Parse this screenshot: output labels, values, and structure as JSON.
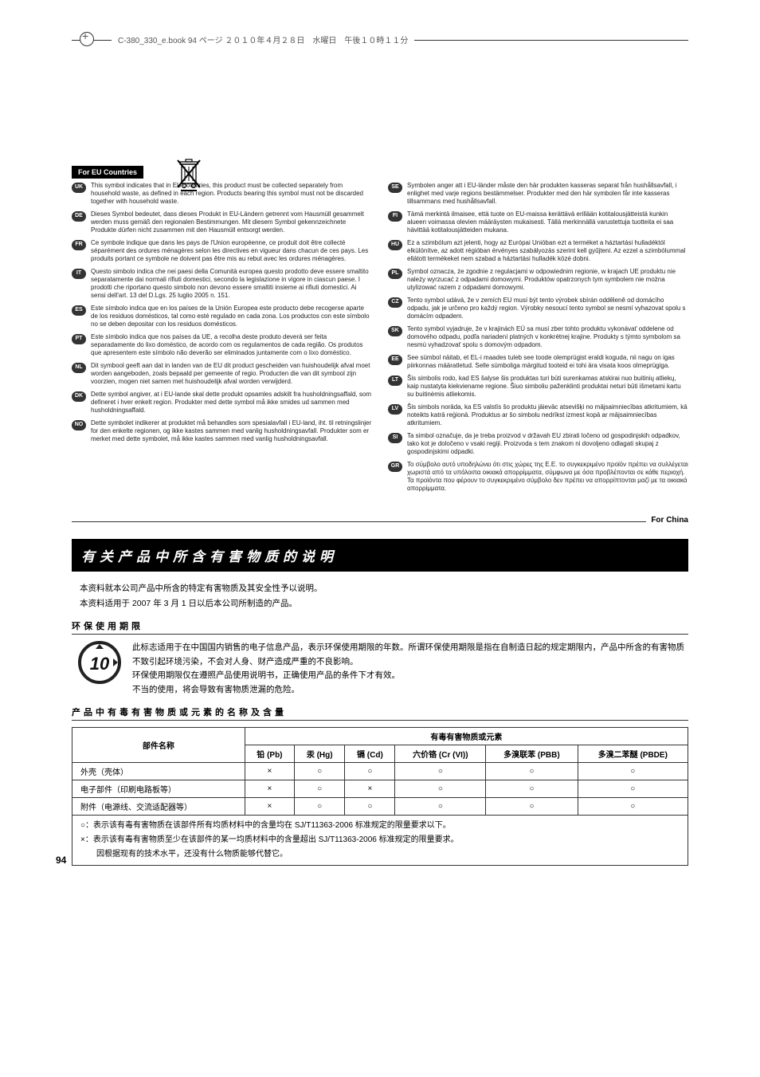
{
  "header": "C-380_330_e.book  94 ページ  ２０１０年４月２８日　水曜日　午後１０時１１分",
  "eu_title": "For EU Countries",
  "china_label": "For China",
  "left_langs": [
    {
      "code": "UK",
      "text": "This symbol indicates that in EU countries, this product must be collected separately from household waste, as defined in each region. Products bearing this symbol must not be discarded together with household waste."
    },
    {
      "code": "DE",
      "text": "Dieses Symbol bedeutet, dass dieses Produkt in EU-Ländern getrennt vom Hausmüll gesammelt werden muss gemäß den regionalen Bestimmungen. Mit diesem Symbol gekennzeichnete Produkte dürfen nicht zusammen mit den Hausmüll entsorgt werden."
    },
    {
      "code": "FR",
      "text": "Ce symbole indique que dans les pays de l'Union européenne, ce produit doit être collecté séparément des ordures ménagères selon les directives en vigueur dans chacun de ces pays. Les produits portant ce symbole ne doivent pas être mis au rebut avec les ordures ménagères."
    },
    {
      "code": "IT",
      "text": "Questo simbolo indica che nei paesi della Comunità europea questo prodotto deve essere smaltito separatamente dai normali rifiuti domestici, secondo la legislazione in vigore in ciascun paese. I prodotti che riportano questo simbolo non devono essere smaltiti insieme ai rifiuti domestici. Ai sensi dell'art. 13 del D.Lgs. 25 luglio 2005 n. 151."
    },
    {
      "code": "ES",
      "text": "Este símbolo indica que en los países de la Unión Europea este producto debe recogerse aparte de los residuos domésticos, tal como esté regulado en cada zona. Los productos con este símbolo no se deben depositar con los residuos domésticos."
    },
    {
      "code": "PT",
      "text": "Este símbolo indica que nos países da UE, a recolha deste produto deverá ser feita separadamente do lixo doméstico, de acordo com os regulamentos de cada região. Os produtos que apresentem este símbolo não deverão ser eliminados juntamente com o lixo doméstico."
    },
    {
      "code": "NL",
      "text": "Dit symbool geeft aan dat in landen van de EU dit product gescheiden van huishoudelijk afval moet worden aangeboden, zoals bepaald per gemeente of regio. Producten die van dit symbool zijn voorzien, mogen niet samen met huishoudelijk afval worden verwijderd."
    },
    {
      "code": "DK",
      "text": "Dette symbol angiver, at i EU-lande skal dette produkt opsamles adskilt fra husholdningsaffald, som defineret i hver enkelt region. Produkter med dette symbol må ikke smides ud sammen med husholdningsaffald."
    },
    {
      "code": "NO",
      "text": "Dette symbolet indikerer at produktet må behandles som spesialavfall i EU-land, iht. til retningslinjer for den enkelte regionen, og ikke kastes sammen med vanlig husholdningsavfall. Produkter som er merket med dette symbolet, må ikke kastes sammen med vanlig husholdningsavfall."
    }
  ],
  "right_langs": [
    {
      "code": "SE",
      "text": "Symbolen anger att i EU-länder måste den här produkten kasseras separat från hushållsavfall, i enlighet med varje regions bestämmelser. Produkter med den här symbolen får inte kasseras tillsammans med hushållsavfall."
    },
    {
      "code": "FI",
      "text": "Tämä merkintä ilmaisee, että tuote on EU-maissa kerättävä erillään kotitalousjätteistä kunkin alueen voimassa olevien määräysten mukaisesti. Tällä merkinnällä varustettuja tuotteita ei saa hävittää kotitalousjätteiden mukana."
    },
    {
      "code": "HU",
      "text": "Ez a szimbólum azt jelenti, hogy az Európai Unióban ezt a terméket a háztartási hulladéktól elkülönítve, az adott régióban érvényes szabályozás szerint kell gyűjteni. Az ezzel a szimbólummal ellátott termékeket nem szabad a háztartási hulladék közé dobni."
    },
    {
      "code": "PL",
      "text": "Symbol oznacza, że zgodnie z regulacjami w odpowiednim regionie, w krajach UE produktu nie należy wyrzucać z odpadami domowymi. Produktów opatrzonych tym symbolem nie można utylizować razem z odpadami domowymi."
    },
    {
      "code": "CZ",
      "text": "Tento symbol udává, že v zemích EU musí být tento výrobek sbírán odděleně od domácího odpadu, jak je určeno pro každý region. Výrobky nesoucí tento symbol se nesmí vyhazovat spolu s domácím odpadem."
    },
    {
      "code": "SK",
      "text": "Tento symbol vyjadruje, že v krajinách EÚ sa musí zber tohto produktu vykonávať oddelene od domového odpadu, podľa nariadení platných v konkrétnej krajine. Produkty s týmto symbolom sa nesmú vyhadzovať spolu s domovým odpadom."
    },
    {
      "code": "EE",
      "text": "See sümbol näitab, et EL-i maades tuleb see toode olemprügist eraldi koguda, nii nagu on igas piirkonnas määratletud. Selle sümboliga märgitud tooteid ei tohi ära visata koos olmeprügiga."
    },
    {
      "code": "LT",
      "text": "Šis simbolis rodo, kad ES šalyse šis produktas turi būti surenkamas atskirai nuo buitinių atliekų, kaip nustatyta kiekviename regione. Šiuo simboliu paženklinti produktai neturi būti išmetami kartu su buitinėmis atliekomis."
    },
    {
      "code": "LV",
      "text": "Šis simbols norāda, ka ES valstīs šo produktu jāievāc atsevišķi no mājsaimniecības atkritumiem, kā noteikts katrā reģionā. Produktus ar šo simbolu nedrīkst izmest kopā ar mājsaimniecības atkritumiem."
    },
    {
      "code": "SI",
      "text": "Ta simbol označuje, da je treba proizvod v državah EU zbirati ločeno od gospodinjskih odpadkov, tako kot je določeno v vsaki regiji. Proizvoda s tem znakom ni dovoljeno odlagati skupaj z gospodinjskimi odpadki."
    },
    {
      "code": "GR",
      "text": "Το σύμβολο αυτό υποδηλώνει ότι στις χώρες της Ε.Ε. το συγκεκριμένο προϊόν πρέπει να συλλέγεται χωριστά από τα υπόλοιπα οικιακά απορρίμματα, σύμφωνα με όσα προβλέπονται σε κάθε περιοχή. Τα προϊόντα που φέρουν το συγκεκριμένο σύμβολο δεν πρέπει να απορρίπτονται μαζί με τα οικιακά απορρίμματα."
    }
  ],
  "china": {
    "title": "有关产品中所含有害物质的说明",
    "intro1": "本资料就本公司产品中所含的特定有害物质及其安全性予以说明。",
    "intro2": "本资料适用于 2007 年 3 月 1 日以后本公司所制造的产品。",
    "sub1": "环保使用期限",
    "env1": "此标志适用于在中国国内销售的电子信息产品，表示环保使用期限的年数。所谓环保使用期限是指在自制造日起的规定期限内，产品中所含的有害物质不致引起环境污染，不会对人身、财产造成严重的不良影响。",
    "env2": "环保使用期限仅在遵照产品使用说明书，正确使用产品的条件下才有效。",
    "env3": "不当的使用，将会导致有害物质泄漏的危险。",
    "sub2": "产品中有毒有害物质或元素的名称及含量",
    "th_part": "部件名称",
    "th_group": "有毒有害物质或元素",
    "cols": [
      "铅 (Pb)",
      "汞 (Hg)",
      "镉 (Cd)",
      "六价铬 (Cr (VI))",
      "多溴联苯 (PBB)",
      "多溴二苯醚 (PBDE)"
    ],
    "rows": [
      {
        "name": "外壳（壳体）",
        "vals": [
          "×",
          "○",
          "○",
          "○",
          "○",
          "○"
        ]
      },
      {
        "name": "电子部件（印刷电路板等）",
        "vals": [
          "×",
          "○",
          "×",
          "○",
          "○",
          "○"
        ]
      },
      {
        "name": "附件（电源线、交流适配器等）",
        "vals": [
          "×",
          "○",
          "○",
          "○",
          "○",
          "○"
        ]
      }
    ],
    "note1": "○：表示该有毒有害物质在该部件所有均质材料中的含量均在 SJ/T11363-2006 标准规定的限量要求以下。",
    "note2": "×：表示该有毒有害物质至少在该部件的某一均质材料中的含量超出 SJ/T11363-2006 标准规定的限量要求。",
    "note3": "　　因根据现有的技术水平，还没有什么物质能够代替它。"
  },
  "page_num": "94"
}
